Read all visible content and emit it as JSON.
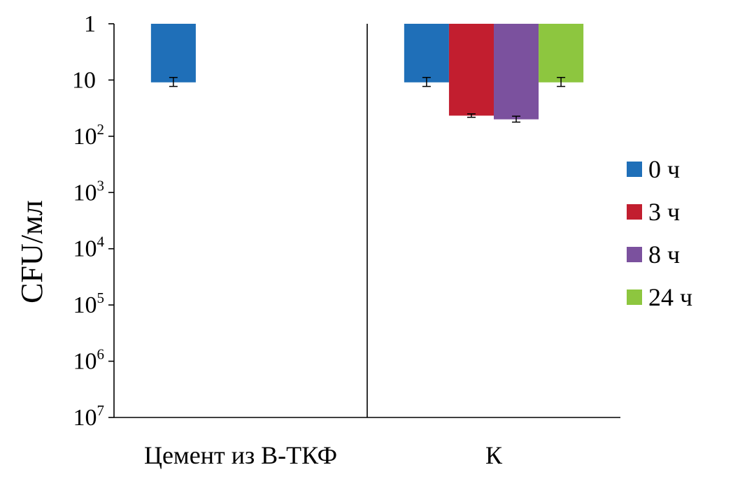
{
  "chart_data": {
    "type": "bar",
    "ylabel": "CFU/мл",
    "xlabel": "",
    "y_scale": "log",
    "y_inverted": true,
    "ylim": [
      1,
      10000000
    ],
    "y_ticks": [
      {
        "value": 1,
        "base": "1",
        "exp": ""
      },
      {
        "value": 10,
        "base": "10",
        "exp": ""
      },
      {
        "value": 100,
        "base": "10",
        "exp": "2"
      },
      {
        "value": 1000,
        "base": "10",
        "exp": "3"
      },
      {
        "value": 10000,
        "base": "10",
        "exp": "4"
      },
      {
        "value": 100000,
        "base": "10",
        "exp": "5"
      },
      {
        "value": 1000000,
        "base": "10",
        "exp": "6"
      },
      {
        "value": 10000000,
        "base": "10",
        "exp": "7"
      }
    ],
    "categories": [
      "Цемент из В-ТКФ",
      "К"
    ],
    "series": [
      {
        "name": "0 ч",
        "color": "#1f6fb8",
        "values": [
          11,
          11
        ],
        "error": [
          2,
          2
        ]
      },
      {
        "name": "3 ч",
        "color": "#c21e2f",
        "values": [
          null,
          43
        ],
        "error": [
          null,
          3
        ]
      },
      {
        "name": "8 ч",
        "color": "#7b519e",
        "values": [
          null,
          50
        ],
        "error": [
          null,
          6
        ]
      },
      {
        "name": "24 ч",
        "color": "#8dc63f",
        "values": [
          null,
          11
        ],
        "error": [
          null,
          2
        ]
      }
    ],
    "grid": false,
    "legend_position": "right",
    "divider_between_categories": true
  }
}
